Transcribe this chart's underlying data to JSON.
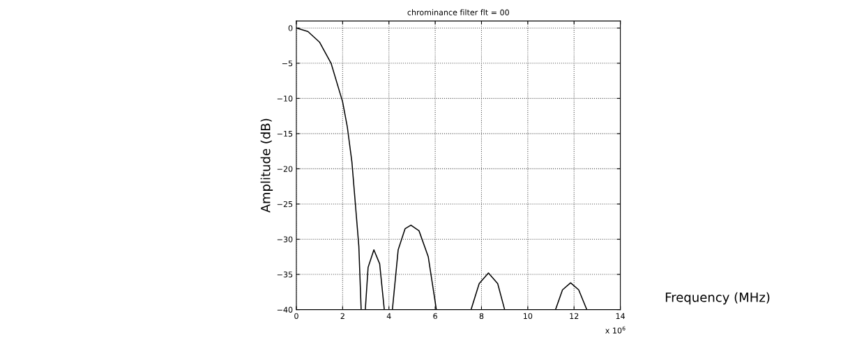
{
  "chart_data": {
    "type": "line",
    "title": "chrominance filter flt = 00",
    "xlabel": "Frequency (MHz)",
    "ylabel": "Amplitude (dB)",
    "annotations": [
      "x 10$^{6}$"
    ],
    "x": [
      0,
      0.5,
      1,
      1.5,
      2,
      2.2,
      2.4,
      2.6,
      2.7,
      2.8,
      2.9,
      2.98,
      3.1,
      3.35,
      3.6,
      3.8,
      4.0,
      4.15,
      4.4,
      4.7,
      4.95,
      5.3,
      5.7,
      6.05,
      6.8,
      7.55,
      7.9,
      8.3,
      8.7,
      9.0,
      10.1,
      11.2,
      11.5,
      11.85,
      12.2,
      12.55
    ],
    "series": [
      {
        "color": "#000000",
        "values": [
          0,
          -0.5,
          -2,
          -5,
          -10.5,
          -14,
          -19,
          -27,
          -31,
          -40,
          null,
          -40,
          -34,
          -31.5,
          -33.5,
          -40,
          null,
          -40,
          -31.5,
          -28.5,
          -28,
          -28.8,
          -32.5,
          -40,
          null,
          -40,
          -36.3,
          -34.8,
          -36.3,
          -40,
          null,
          -40,
          -37.2,
          -36.2,
          -37.2,
          -40
        ]
      }
    ],
    "xlim": [
      0,
      14
    ],
    "xticks": [
      0,
      2,
      4,
      6,
      8,
      10,
      12,
      14
    ],
    "ylim": [
      -40,
      1
    ],
    "yticks": [
      0,
      -5,
      -10,
      -15,
      -20,
      -25,
      -30,
      -35,
      -40
    ],
    "grid": true,
    "line_style": "solid",
    "marker": "none"
  }
}
